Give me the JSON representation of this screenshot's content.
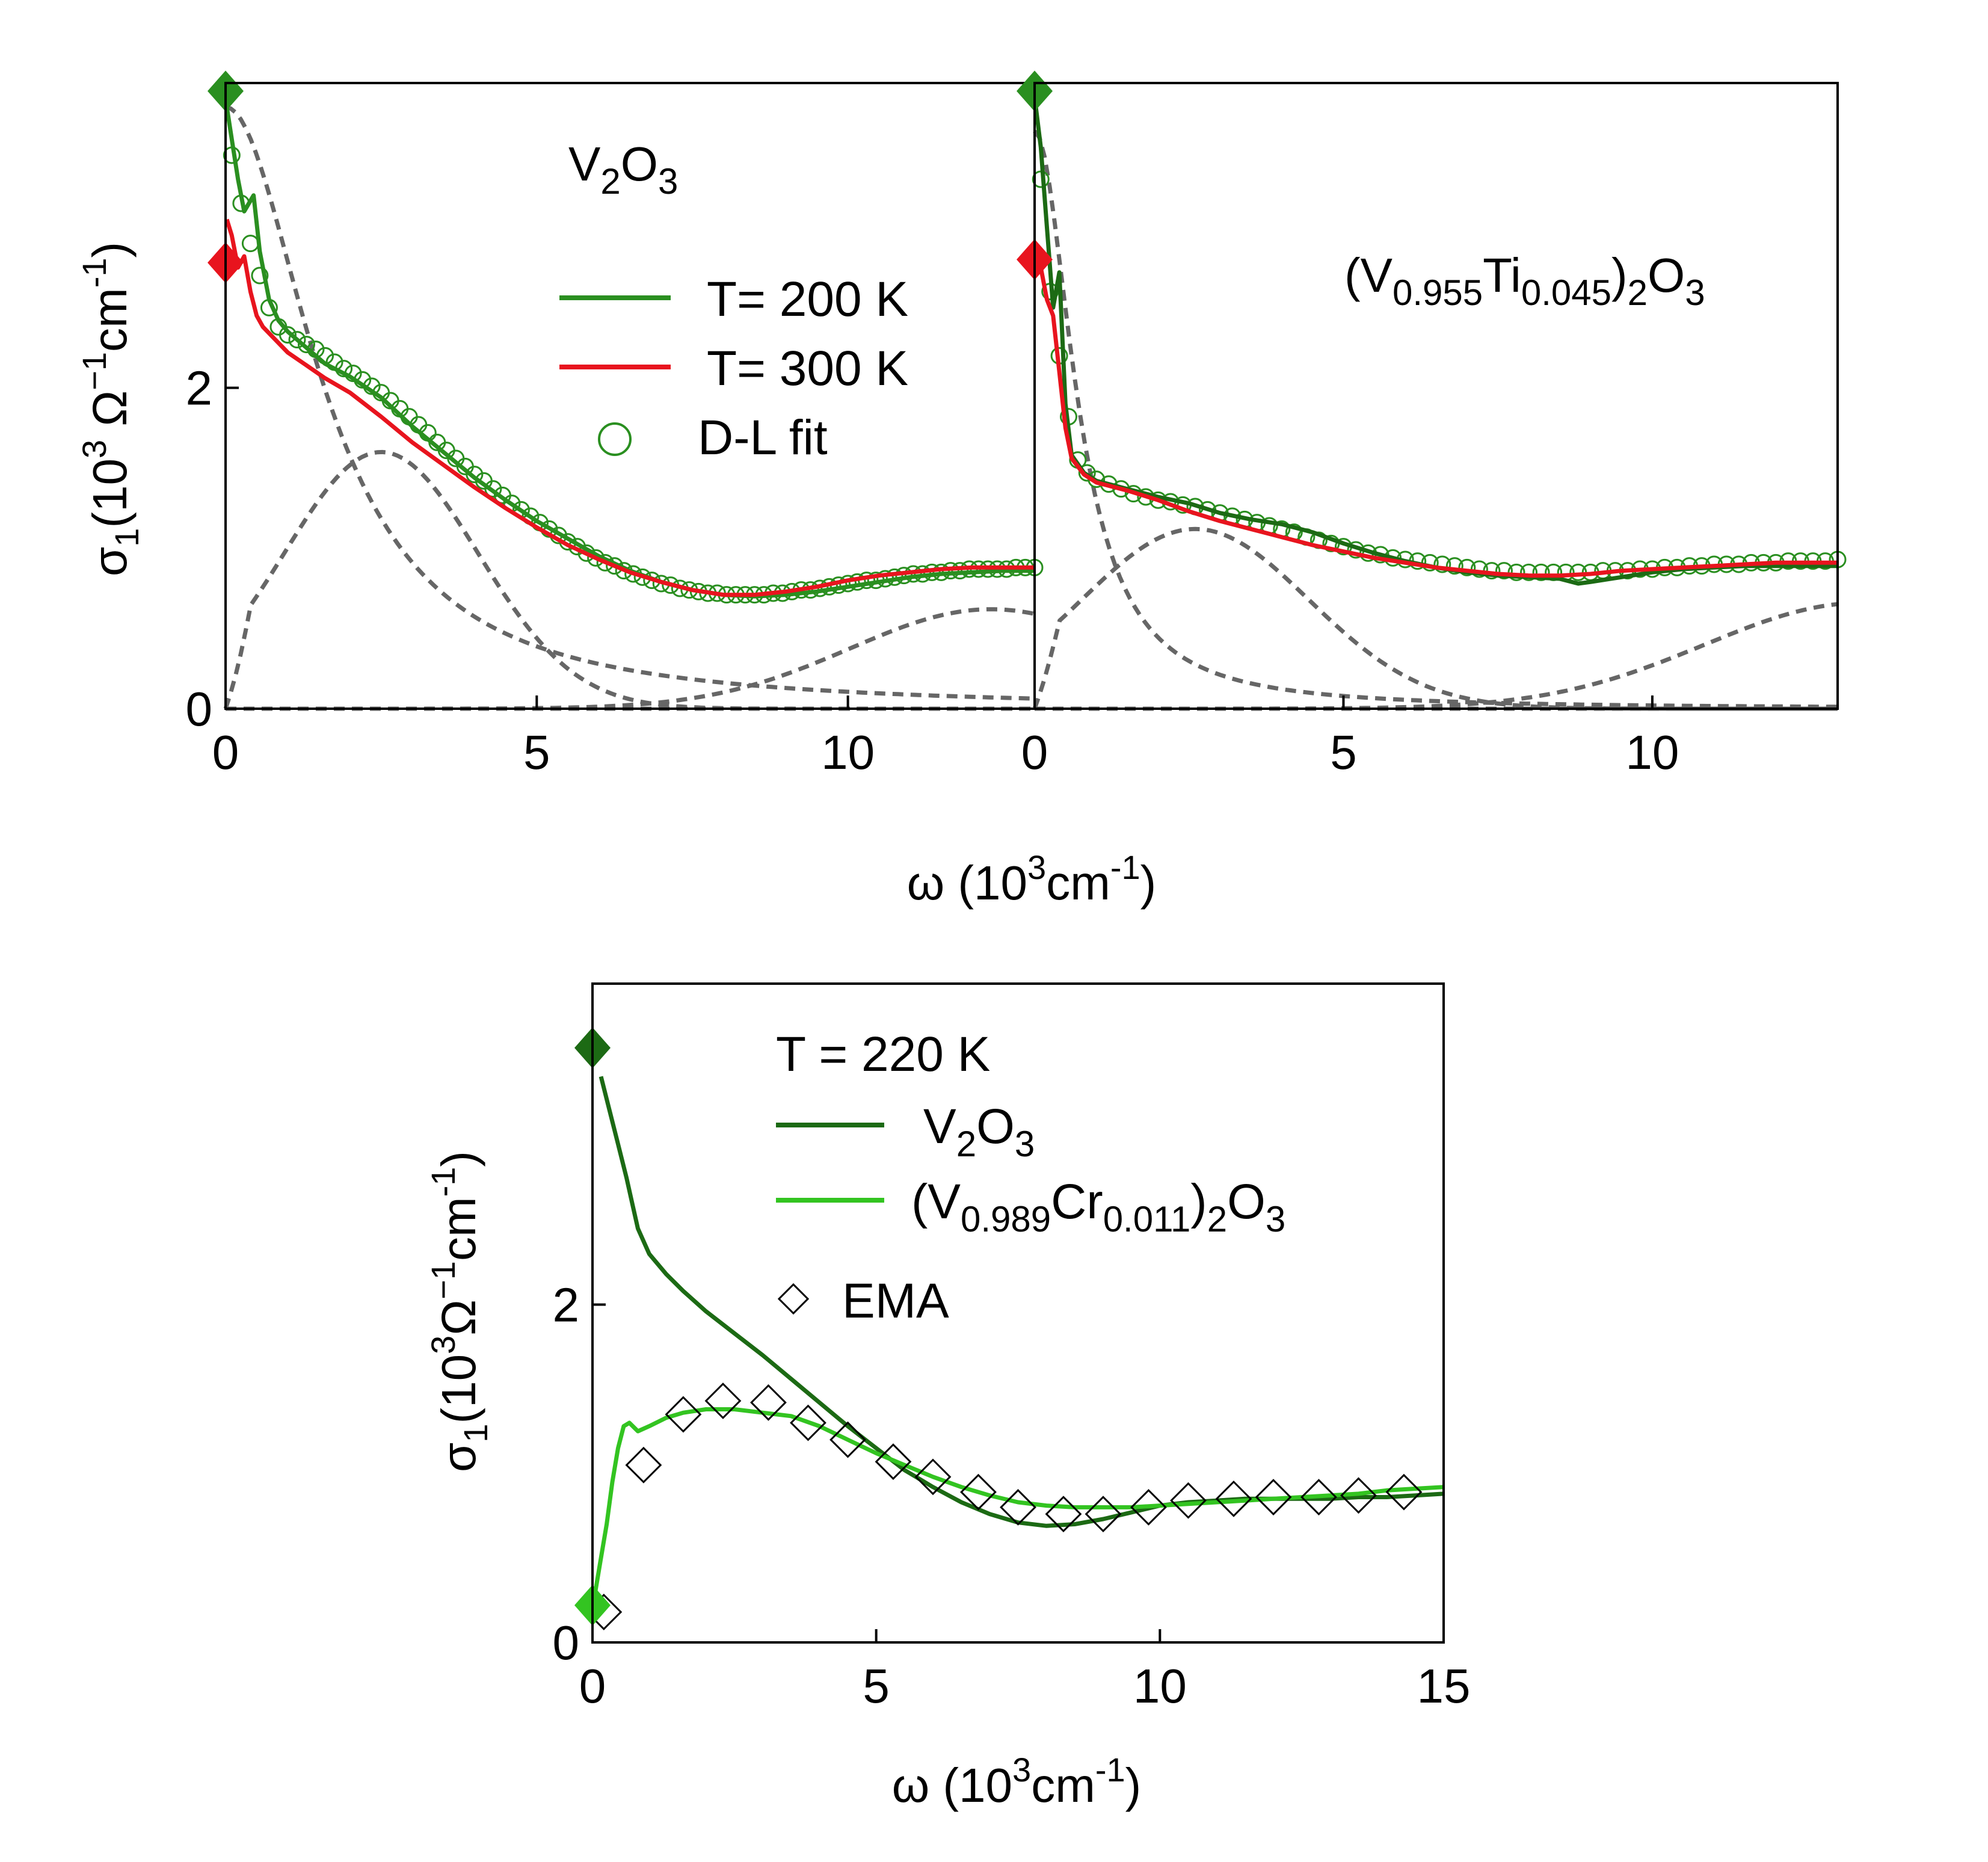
{
  "colors": {
    "green_200K": "#2a8f20",
    "red_300K": "#e8141e",
    "dl_fit": "#2a8f20",
    "components": "#666666",
    "dark_green": "#1c6a14",
    "light_green": "#33c421",
    "ema": "#000000"
  },
  "chart_data": [
    {
      "id": "panel-a",
      "type": "line",
      "xlabel": {
        "text": "ω (10",
        "sup": "3",
        "tail": "cm",
        "tail_sup": "-1",
        "close": ")"
      },
      "ylabel": {
        "pre": "σ",
        "sub": "1",
        "mid": "(10",
        "sup": "3",
        "omega": " Ω",
        "sup2": "−1",
        "cm": "cm",
        "sup3": "-1",
        "close": ")"
      },
      "xlim": [
        0,
        13
      ],
      "ylim": [
        0,
        3.9
      ],
      "xticks": [
        0,
        5,
        10
      ],
      "yticks": [
        0,
        2
      ],
      "annotation": {
        "base": "V",
        "sub1": "2",
        "mid": "O",
        "sub2": "3"
      },
      "legend": [
        {
          "label": "T= 200 K",
          "kind": "line",
          "color_key": "green_200K"
        },
        {
          "label": "T= 300 K",
          "kind": "line",
          "color_key": "red_300K"
        },
        {
          "label": "D-L fit",
          "kind": "circle",
          "color_key": "dl_fit"
        }
      ],
      "series": [
        {
          "name": "T= 200 K",
          "color_key": "green_200K",
          "x": [
            0.02,
            0.1,
            0.2,
            0.3,
            0.45,
            0.55,
            0.7,
            0.85,
            1.0,
            1.3,
            1.6,
            2.0,
            2.5,
            3.0,
            3.5,
            4.0,
            4.5,
            5.0,
            5.5,
            6.0,
            6.5,
            7.0,
            7.5,
            8.0,
            8.5,
            9.0,
            9.5,
            10.0,
            10.5,
            11.0,
            11.5,
            12.0,
            12.5,
            13.0
          ],
          "y": [
            3.75,
            3.55,
            3.3,
            3.1,
            3.2,
            2.85,
            2.55,
            2.42,
            2.35,
            2.25,
            2.15,
            2.07,
            1.94,
            1.76,
            1.6,
            1.44,
            1.3,
            1.17,
            1.06,
            0.95,
            0.86,
            0.79,
            0.74,
            0.71,
            0.7,
            0.71,
            0.73,
            0.76,
            0.79,
            0.82,
            0.84,
            0.85,
            0.86,
            0.86
          ]
        },
        {
          "name": "T= 300 K",
          "color_key": "red_300K",
          "x": [
            0.02,
            0.1,
            0.2,
            0.3,
            0.4,
            0.5,
            0.6,
            0.8,
            1.0,
            1.3,
            1.6,
            2.0,
            2.5,
            3.0,
            3.5,
            4.0,
            4.5,
            5.0,
            5.5,
            6.0,
            6.5,
            7.0,
            7.5,
            8.0,
            8.5,
            9.0,
            9.5,
            10.0,
            10.5,
            11.0,
            11.5,
            12.0,
            12.5,
            13.0
          ],
          "y": [
            3.05,
            2.95,
            2.75,
            2.82,
            2.6,
            2.45,
            2.38,
            2.3,
            2.22,
            2.14,
            2.06,
            1.97,
            1.82,
            1.66,
            1.52,
            1.38,
            1.25,
            1.13,
            1.02,
            0.93,
            0.85,
            0.79,
            0.74,
            0.71,
            0.71,
            0.73,
            0.76,
            0.8,
            0.83,
            0.85,
            0.87,
            0.88,
            0.88,
            0.88
          ]
        }
      ],
      "fit_points": {
        "x": [
          0.1,
          0.25,
          0.4,
          0.55,
          0.7,
          0.85,
          1.0,
          1.15,
          1.3,
          1.45,
          1.6,
          1.75,
          1.9,
          2.05,
          2.2,
          2.35,
          2.5,
          2.65,
          2.8,
          2.95,
          3.1,
          3.25,
          3.4,
          3.55,
          3.7,
          3.85,
          4.0,
          4.15,
          4.3,
          4.45,
          4.6,
          4.75,
          4.9,
          5.05,
          5.2,
          5.35,
          5.5,
          5.65,
          5.8,
          5.95,
          6.1,
          6.25,
          6.4,
          6.55,
          6.7,
          6.85,
          7.0,
          7.15,
          7.3,
          7.45,
          7.6,
          7.75,
          7.9,
          8.05,
          8.2,
          8.35,
          8.5,
          8.65,
          8.8,
          8.95,
          9.1,
          9.25,
          9.4,
          9.55,
          9.7,
          9.85,
          10.0,
          10.15,
          10.3,
          10.45,
          10.6,
          10.75,
          10.9,
          11.05,
          11.2,
          11.35,
          11.5,
          11.65,
          11.8,
          11.95,
          12.1,
          12.25,
          12.4,
          12.55,
          12.7,
          12.85,
          13.0
        ],
        "y": [
          3.45,
          3.15,
          2.9,
          2.7,
          2.5,
          2.38,
          2.33,
          2.3,
          2.27,
          2.24,
          2.2,
          2.16,
          2.12,
          2.09,
          2.05,
          2.01,
          1.97,
          1.92,
          1.87,
          1.82,
          1.77,
          1.72,
          1.66,
          1.61,
          1.56,
          1.51,
          1.46,
          1.42,
          1.37,
          1.33,
          1.28,
          1.24,
          1.2,
          1.16,
          1.12,
          1.08,
          1.04,
          1.01,
          0.97,
          0.94,
          0.91,
          0.89,
          0.86,
          0.84,
          0.82,
          0.8,
          0.78,
          0.77,
          0.75,
          0.74,
          0.73,
          0.72,
          0.72,
          0.71,
          0.71,
          0.71,
          0.71,
          0.71,
          0.72,
          0.72,
          0.73,
          0.74,
          0.74,
          0.75,
          0.76,
          0.77,
          0.78,
          0.79,
          0.8,
          0.8,
          0.81,
          0.82,
          0.83,
          0.84,
          0.84,
          0.85,
          0.85,
          0.86,
          0.86,
          0.87,
          0.87,
          0.87,
          0.87,
          0.87,
          0.88,
          0.88,
          0.88
        ]
      },
      "components": [
        {
          "kind": "drude",
          "A": 3.75,
          "g": 1.7
        },
        {
          "kind": "peak",
          "A": 1.6,
          "x0": 2.5,
          "s": 2.2
        },
        {
          "kind": "peak",
          "A": 0.62,
          "x0": 12.3,
          "s": 3.2
        },
        {
          "kind": "flat",
          "y": 0.0
        }
      ],
      "markers": [
        {
          "x": 0,
          "y": 3.85,
          "color_key": "green_200K"
        },
        {
          "x": 0,
          "y": 2.78,
          "color_key": "red_300K"
        }
      ]
    },
    {
      "id": "panel-b",
      "type": "line",
      "xlim": [
        0,
        13
      ],
      "ylim": [
        0,
        3.9
      ],
      "xticks": [
        0,
        5,
        10
      ],
      "annotation": {
        "pre": "(V",
        "sub1": "0.955",
        "mid": "Ti",
        "sub2": "0.045",
        "post": ")",
        "sub3": "2",
        "tail": "O",
        "sub4": "3"
      },
      "series": [
        {
          "name": "T= 200 K",
          "color_key": "dark_green",
          "x": [
            0.02,
            0.1,
            0.2,
            0.3,
            0.4,
            0.5,
            0.6,
            0.8,
            1.0,
            1.5,
            2.0,
            2.5,
            3.0,
            3.5,
            4.0,
            4.5,
            5.0,
            5.5,
            6.0,
            6.5,
            7.0,
            7.5,
            8.0,
            8.5,
            8.8,
            9.0,
            9.5,
            10.0,
            10.5,
            11.0,
            11.5,
            12.0,
            12.5,
            13.0
          ],
          "y": [
            3.75,
            3.5,
            3.0,
            2.5,
            2.72,
            1.9,
            1.58,
            1.47,
            1.42,
            1.37,
            1.32,
            1.28,
            1.22,
            1.18,
            1.15,
            1.1,
            1.03,
            0.97,
            0.92,
            0.88,
            0.85,
            0.83,
            0.82,
            0.81,
            0.78,
            0.79,
            0.82,
            0.85,
            0.87,
            0.88,
            0.89,
            0.89,
            0.89,
            0.89
          ]
        },
        {
          "name": "T= 300 K",
          "color_key": "red_300K",
          "x": [
            0.02,
            0.1,
            0.2,
            0.3,
            0.4,
            0.5,
            0.6,
            0.8,
            1.0,
            1.5,
            2.0,
            2.5,
            3.0,
            3.5,
            4.0,
            4.5,
            5.0,
            5.5,
            6.0,
            6.5,
            7.0,
            7.5,
            8.0,
            8.5,
            9.0,
            9.5,
            10.0,
            10.5,
            11.0,
            11.5,
            12.0,
            12.5,
            13.0
          ],
          "y": [
            2.85,
            2.75,
            2.55,
            2.45,
            2.1,
            1.75,
            1.56,
            1.46,
            1.41,
            1.36,
            1.3,
            1.23,
            1.17,
            1.12,
            1.07,
            1.02,
            0.98,
            0.94,
            0.91,
            0.88,
            0.86,
            0.84,
            0.83,
            0.83,
            0.84,
            0.86,
            0.87,
            0.88,
            0.89,
            0.9,
            0.91,
            0.91,
            0.91
          ]
        }
      ],
      "fit_points": {
        "x": [
          0.1,
          0.25,
          0.4,
          0.55,
          0.7,
          0.85,
          1.0,
          1.2,
          1.4,
          1.6,
          1.8,
          2.0,
          2.2,
          2.4,
          2.6,
          2.8,
          3.0,
          3.2,
          3.4,
          3.6,
          3.8,
          4.0,
          4.2,
          4.4,
          4.6,
          4.8,
          5.0,
          5.2,
          5.4,
          5.6,
          5.8,
          6.0,
          6.2,
          6.4,
          6.6,
          6.8,
          7.0,
          7.2,
          7.4,
          7.6,
          7.8,
          8.0,
          8.2,
          8.4,
          8.6,
          8.8,
          9.0,
          9.2,
          9.4,
          9.6,
          9.8,
          10.0,
          10.2,
          10.4,
          10.6,
          10.8,
          11.0,
          11.2,
          11.4,
          11.6,
          11.8,
          12.0,
          12.2,
          12.4,
          12.6,
          12.8,
          13.0
        ],
        "y": [
          3.3,
          2.6,
          2.2,
          1.82,
          1.55,
          1.47,
          1.43,
          1.4,
          1.37,
          1.34,
          1.32,
          1.3,
          1.29,
          1.27,
          1.26,
          1.24,
          1.22,
          1.2,
          1.18,
          1.16,
          1.14,
          1.12,
          1.1,
          1.07,
          1.05,
          1.03,
          1.01,
          0.99,
          0.97,
          0.96,
          0.94,
          0.93,
          0.92,
          0.91,
          0.9,
          0.89,
          0.88,
          0.87,
          0.86,
          0.86,
          0.85,
          0.85,
          0.85,
          0.85,
          0.85,
          0.85,
          0.85,
          0.86,
          0.86,
          0.86,
          0.87,
          0.87,
          0.88,
          0.88,
          0.89,
          0.89,
          0.9,
          0.9,
          0.9,
          0.91,
          0.91,
          0.91,
          0.92,
          0.92,
          0.92,
          0.92,
          0.93
        ]
      },
      "components": [
        {
          "kind": "drude",
          "A": 3.6,
          "g": 0.75
        },
        {
          "kind": "peak",
          "A": 1.12,
          "x0": 2.6,
          "s": 2.6
        },
        {
          "kind": "peak",
          "A": 0.66,
          "x0": 13.4,
          "s": 3.6
        },
        {
          "kind": "flat",
          "y": 0.0
        }
      ],
      "markers": [
        {
          "x": 0,
          "y": 3.85,
          "color_key": "green_200K"
        },
        {
          "x": 0,
          "y": 2.8,
          "color_key": "red_300K"
        }
      ]
    },
    {
      "id": "panel-c",
      "type": "line",
      "xlabel": {
        "text": "ω (10",
        "sup": "3",
        "tail": "cm",
        "tail_sup": "-1",
        "close": ")"
      },
      "ylabel": {
        "pre": "σ",
        "sub": "1",
        "mid": "(10",
        "sup": "3",
        "omega": "Ω",
        "sup2": "−1",
        "cm": "cm",
        "sup3": "-1",
        "close": ")"
      },
      "xlim": [
        0,
        15
      ],
      "ylim": [
        0,
        3.9
      ],
      "xticks": [
        0,
        5,
        10,
        15
      ],
      "yticks": [
        0,
        2
      ],
      "title": "T = 220 K",
      "legend": [
        {
          "label": {
            "base": "V",
            "sub1": "2",
            "mid": "O",
            "sub2": "3"
          },
          "kind": "line",
          "color_key": "dark_green"
        },
        {
          "label": {
            "pre": "(V",
            "sub1": "0.989",
            "mid": "Cr",
            "sub2": "0.011",
            "post": ")",
            "sub3": "2",
            "tail": "O",
            "sub4": "3"
          },
          "kind": "line",
          "color_key": "light_green"
        },
        {
          "label": "EMA",
          "kind": "diamond",
          "color_key": "ema"
        }
      ],
      "series": [
        {
          "name": "V2O3",
          "color_key": "dark_green",
          "x": [
            0.15,
            0.3,
            0.45,
            0.6,
            0.7,
            0.8,
            1.0,
            1.3,
            1.6,
            2.0,
            2.5,
            3.0,
            3.5,
            4.0,
            4.5,
            5.0,
            5.5,
            6.0,
            6.5,
            7.0,
            7.5,
            8.0,
            8.5,
            9.0,
            9.5,
            10.0,
            10.5,
            11.0,
            11.5,
            12.0,
            12.5,
            13.0,
            13.5,
            14.0,
            14.5,
            15.0
          ],
          "y": [
            3.35,
            3.15,
            2.95,
            2.75,
            2.6,
            2.45,
            2.3,
            2.18,
            2.08,
            1.96,
            1.83,
            1.7,
            1.56,
            1.42,
            1.28,
            1.15,
            1.02,
            0.92,
            0.83,
            0.76,
            0.71,
            0.69,
            0.7,
            0.73,
            0.77,
            0.81,
            0.83,
            0.84,
            0.85,
            0.85,
            0.85,
            0.85,
            0.86,
            0.86,
            0.87,
            0.88
          ]
        },
        {
          "name": "(V0.989Cr0.011)2O3",
          "color_key": "light_green",
          "x": [
            0.05,
            0.15,
            0.25,
            0.35,
            0.45,
            0.55,
            0.65,
            0.8,
            1.0,
            1.3,
            1.6,
            2.0,
            2.5,
            3.0,
            3.5,
            4.0,
            4.5,
            5.0,
            5.5,
            6.0,
            6.5,
            7.0,
            7.5,
            8.0,
            8.5,
            9.0,
            9.5,
            10.0,
            10.5,
            11.0,
            11.5,
            12.0,
            12.5,
            13.0,
            13.5,
            14.0,
            14.5,
            15.0
          ],
          "y": [
            0.3,
            0.5,
            0.7,
            0.95,
            1.15,
            1.28,
            1.3,
            1.25,
            1.28,
            1.33,
            1.36,
            1.38,
            1.38,
            1.36,
            1.34,
            1.28,
            1.2,
            1.12,
            1.05,
            0.98,
            0.92,
            0.87,
            0.83,
            0.81,
            0.8,
            0.8,
            0.8,
            0.81,
            0.82,
            0.83,
            0.84,
            0.85,
            0.86,
            0.87,
            0.88,
            0.9,
            0.91,
            0.92
          ]
        }
      ],
      "ema_points": {
        "x": [
          0.2,
          0.9,
          1.6,
          2.3,
          3.1,
          3.8,
          4.5,
          5.3,
          6.0,
          6.8,
          7.5,
          8.3,
          9.0,
          9.8,
          10.5,
          11.3,
          12.0,
          12.8,
          13.5,
          14.3
        ],
        "y": [
          0.18,
          1.05,
          1.35,
          1.43,
          1.42,
          1.3,
          1.2,
          1.07,
          0.98,
          0.89,
          0.8,
          0.76,
          0.76,
          0.8,
          0.84,
          0.85,
          0.86,
          0.86,
          0.87,
          0.89
        ]
      },
      "markers": [
        {
          "x": 0,
          "y": 3.52,
          "color_key": "dark_green"
        },
        {
          "x": 0,
          "y": 0.22,
          "color_key": "light_green"
        }
      ]
    }
  ]
}
